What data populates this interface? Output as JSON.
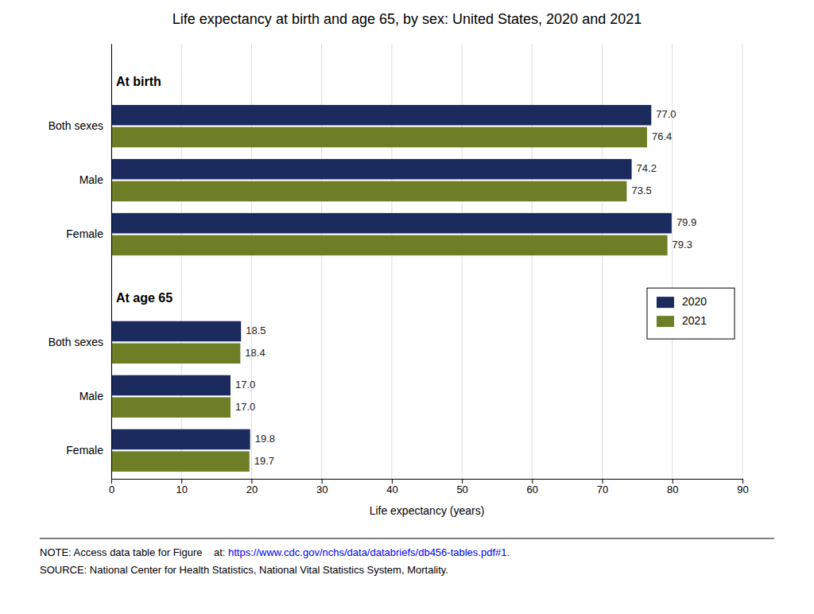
{
  "chart_data": {
    "type": "bar",
    "orientation": "horizontal",
    "title": "Life expectancy at birth and age 65, by sex: United States, 2020 and 2021",
    "categories": [
      "Both sexes",
      "Male",
      "Female",
      "Both sexes",
      "Male",
      "Female"
    ],
    "annotations": [
      "At birth",
      "At age 65"
    ],
    "series": [
      {
        "name": "2020",
        "color": "#1c2b5e",
        "values": [
          77.0,
          74.2,
          79.9,
          18.5,
          17.0,
          19.8
        ],
        "value_labels": [
          "77.0",
          "74.2",
          "79.9",
          "18.5",
          "17.0",
          "19.8"
        ]
      },
      {
        "name": "2021",
        "color": "#6e7e27",
        "values": [
          76.4,
          73.5,
          79.3,
          18.4,
          17.0,
          19.7
        ],
        "value_labels": [
          "76.4",
          "73.5",
          "79.3",
          "18.4",
          "17.0",
          "19.7"
        ]
      }
    ],
    "xlabel": "Life expectancy (years)",
    "xlim": [
      0,
      90
    ],
    "xticks": [
      0,
      10,
      20,
      30,
      40,
      50,
      60,
      70,
      80,
      90
    ],
    "grid": true,
    "legend": "right",
    "data_labels": true,
    "note": "NOTE: Access data table for Figure    at: ",
    "note_link": "https://www.cdc.gov/nchs/data/databriefs/db456-tables.pdf#1.",
    "source": "SOURCE: National Center for Health Statistics, National Vital Statistics System, Mortality."
  }
}
